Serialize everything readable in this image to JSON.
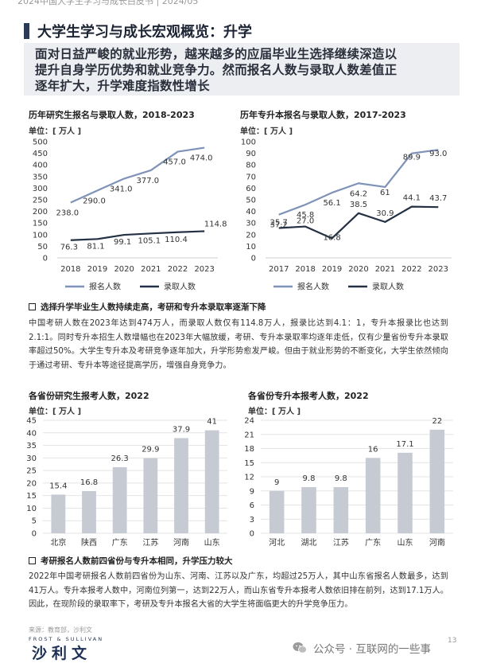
{
  "header": {
    "cropped_text": "2024中国大学生学习与成长白皮书 | 2024/05"
  },
  "page_title": "大学生学习与成长宏观概览：升学",
  "banner": {
    "line1": "面对日益严峻的就业形势，越来越多的应届毕业生选择继续深造以",
    "line2": "提升自身学历优势和就业竞争力。然而报名人数与录取人数差值正",
    "line3": "逐年扩大，升学难度指数性增长"
  },
  "colors": {
    "series_apply": "#7f93b8",
    "series_admit": "#243044",
    "bars": "#c5cad3",
    "title_mark": "#2b3a55",
    "banner_bg": "#eceef2"
  },
  "charts": [
    {
      "id": "grad-exam",
      "title": "历年研究生报名与录取人数，2018-2023",
      "unit": "单位：[ 万人 ]",
      "chart_data": {
        "type": "line",
        "x": [
          "2018",
          "2019",
          "2020",
          "2021",
          "2022",
          "2023"
        ],
        "ylim": [
          0,
          500
        ],
        "yticks": [
          0,
          50,
          100,
          150,
          200,
          250,
          300,
          350,
          400,
          450,
          500
        ],
        "series": [
          {
            "name": "报名人数",
            "values": [
              238.0,
              290.0,
              341.0,
              377.0,
              457.0,
              474.0
            ]
          },
          {
            "name": "录取人数",
            "values": [
              76.3,
              81.1,
              99.1,
              105.1,
              110.4,
              114.8
            ]
          }
        ]
      }
    },
    {
      "id": "upgrade-exam",
      "title": "历年专升本报名与录取人数，2017-2023",
      "unit": "单位：[ 万人 ]",
      "chart_data": {
        "type": "line",
        "x": [
          "2017",
          "2018",
          "2019",
          "2020",
          "2021",
          "2022",
          "2023"
        ],
        "ylim": [
          0,
          100
        ],
        "yticks": [
          0,
          10,
          20,
          30,
          40,
          50,
          60,
          70,
          80,
          90,
          100
        ],
        "series": [
          {
            "name": "报名人数",
            "values": [
              37.2,
              45.8,
              56.1,
              64.2,
              61.0,
              89.9,
              93.0
            ]
          },
          {
            "name": "录取人数",
            "values": [
              25.7,
              27.0,
              16.8,
              38.5,
              30.9,
              44.1,
              43.7
            ]
          }
        ]
      }
    },
    {
      "id": "province-grad",
      "title": "各省份研究生报考人数，2022",
      "unit": "单位：[ 万人 ]",
      "chart_data": {
        "type": "bar",
        "categories": [
          "北京",
          "陕西",
          "广东",
          "江苏",
          "河南",
          "山东"
        ],
        "values": [
          15.4,
          16.8,
          26.3,
          29.9,
          37.9,
          41.0
        ],
        "ylim": [
          0,
          45
        ],
        "yticks": [
          0,
          5,
          10,
          15,
          20,
          25,
          30,
          35,
          40,
          45
        ]
      }
    },
    {
      "id": "province-upgrade",
      "title": "各省份专升本报考人数，2022",
      "unit": "单位：[ 万人 ]",
      "chart_data": {
        "type": "bar",
        "categories": [
          "河北",
          "湖北",
          "江苏",
          "广东",
          "山东",
          "河南"
        ],
        "values": [
          9.0,
          9.8,
          9.8,
          16.0,
          17.1,
          22.0
        ],
        "ylim": [
          0,
          24
        ],
        "yticks": [
          0,
          3,
          6,
          9,
          12,
          15,
          18,
          21,
          24
        ]
      }
    }
  ],
  "section1": {
    "heading": "选择升学毕业生人数持续走高，考研和专升本录取率逐渐下降",
    "paragraph": "中国考研人数在2023年达到474万人，而录取人数仅有114.8万人，报录比达到4.1：1，专升本报录比也达到2.1:1。同时专升本招生人数增幅也在2023年大幅放缓，考研、专升本录取率均逐年走低，仅有少量省份专升本录取率超过50%。大学生专升本及考研竞争逐年加大，升学形势愈发严峻。但由于就业形势的不断变化，大学生依然倾向于通过考研、专升本等途径提高学历，增强自身竞争力。"
  },
  "section2": {
    "heading": "考研报名人数前四省份与专升本相同，升学压力较大",
    "paragraph": "2022年中国考研报名人数前四省份为山东、河南、江苏以及广东，均超过25万人，其中山东省报名人数最多，达到41万人。专升本报考人数中，河南位列第一，达到22万人，而山东省专升本报考人数依旧排在前列，达到17.1万人。因此，在现阶段的录取率下，考研及专升本报名大省的大学生将面临更大的升学竞争压力。"
  },
  "footer": {
    "source": "来源：教育部，沙利文",
    "logo_en": "FROST & SULLIVAN",
    "logo_cn": "沙利文",
    "page_number": "13",
    "watermark": "公众号 · 互联网的一些事"
  }
}
